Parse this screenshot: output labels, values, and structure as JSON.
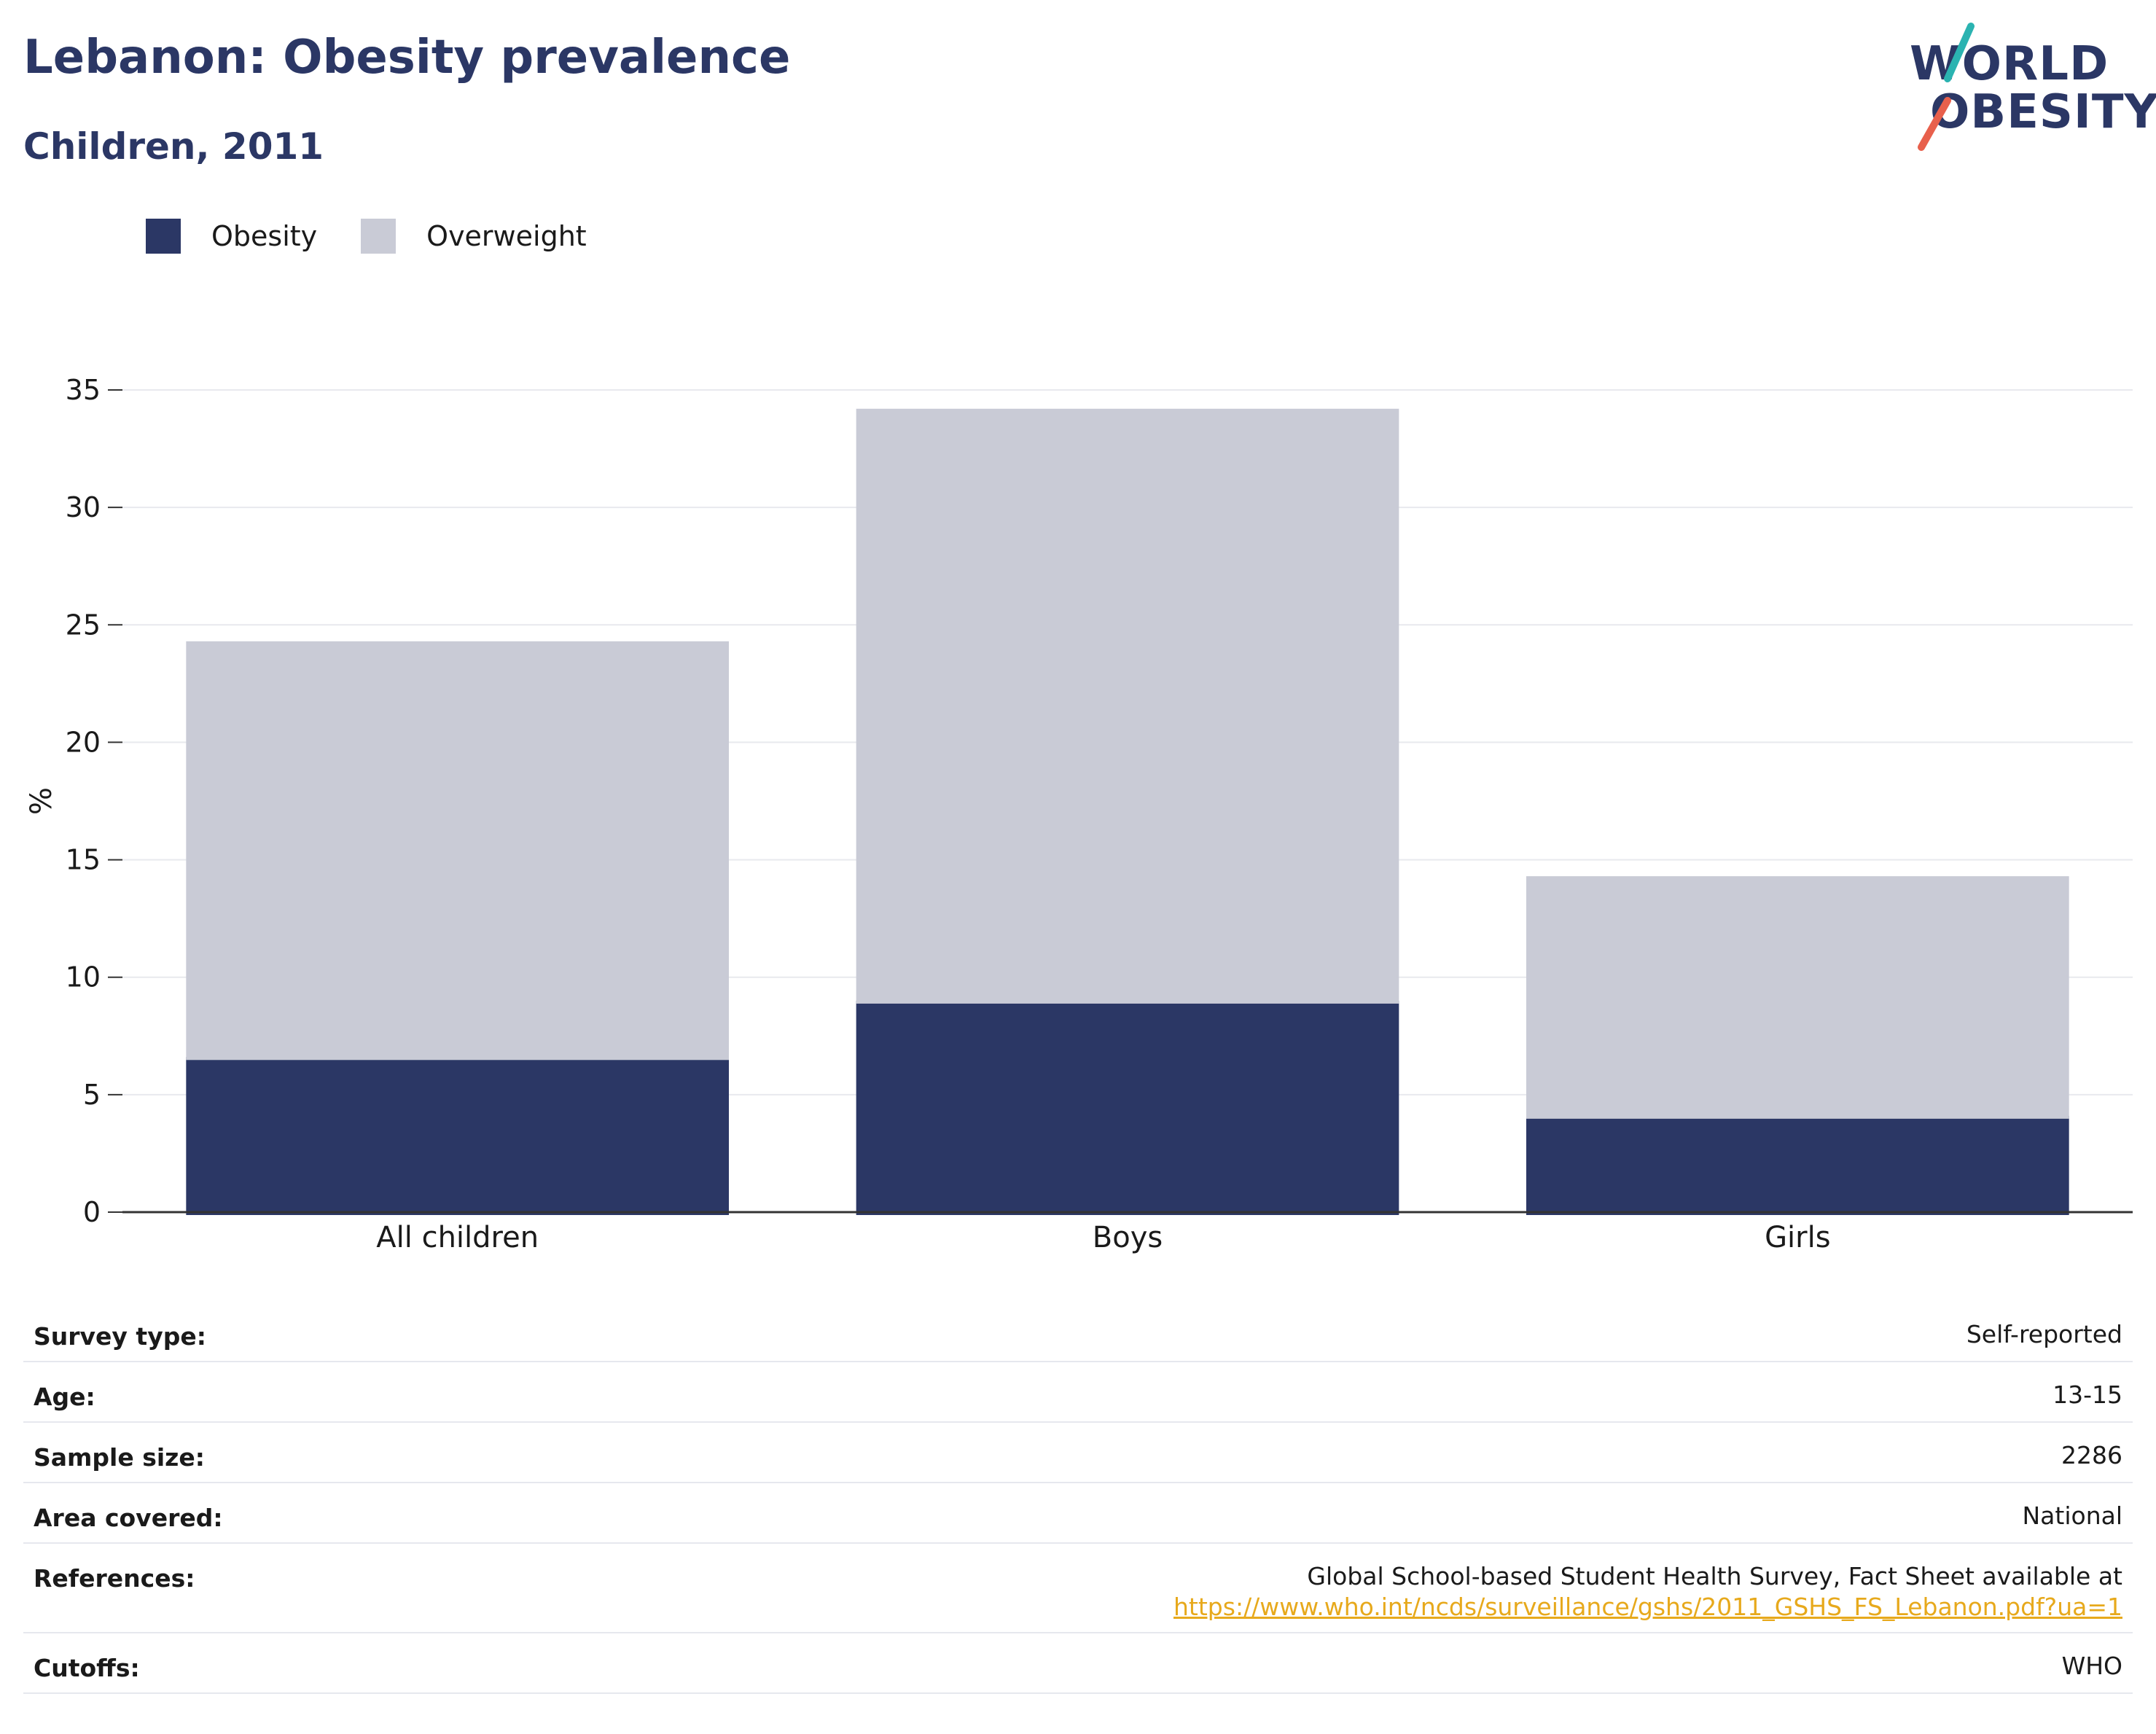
{
  "header": {
    "title": "Lebanon: Obesity prevalence",
    "subtitle": "Children, 2011"
  },
  "logo": {
    "line1": "WORLD",
    "line2": "OBESITY",
    "accent_colors": [
      "#2bb3b1",
      "#e8604c"
    ]
  },
  "legend": [
    {
      "label": "Obesity",
      "color": "#2b3765"
    },
    {
      "label": "Overweight",
      "color": "#c9cbd6"
    }
  ],
  "chart_data": {
    "type": "bar",
    "stacked": true,
    "categories": [
      "All children",
      "Boys",
      "Girls"
    ],
    "series": [
      {
        "name": "Obesity",
        "values": [
          6.6,
          9.0,
          4.1
        ],
        "color": "#2b3765"
      },
      {
        "name": "Overweight",
        "values": [
          17.7,
          25.2,
          10.2
        ],
        "color": "#c9cbd6"
      }
    ],
    "title": "Lebanon: Obesity prevalence",
    "subtitle": "Children, 2011",
    "xlabel": "",
    "ylabel": "%",
    "ylim": [
      0,
      35
    ],
    "yticks": [
      0,
      5,
      10,
      15,
      20,
      25,
      30,
      35
    ],
    "grid": true,
    "legend_position": "top-left"
  },
  "info": {
    "survey_type": {
      "label": "Survey type:",
      "value": "Self-reported"
    },
    "age": {
      "label": "Age:",
      "value": "13-15"
    },
    "sample_size": {
      "label": "Sample size:",
      "value": "2286"
    },
    "area_covered": {
      "label": "Area covered:",
      "value": "National"
    },
    "references": {
      "label": "References:",
      "value": "Global School-based Student Health Survey, Fact Sheet available at",
      "link": "https://www.who.int/ncds/surveillance/gshs/2011_GSHS_FS_Lebanon.pdf?ua=1"
    },
    "cutoffs": {
      "label": "Cutoffs:",
      "value": "WHO"
    }
  }
}
